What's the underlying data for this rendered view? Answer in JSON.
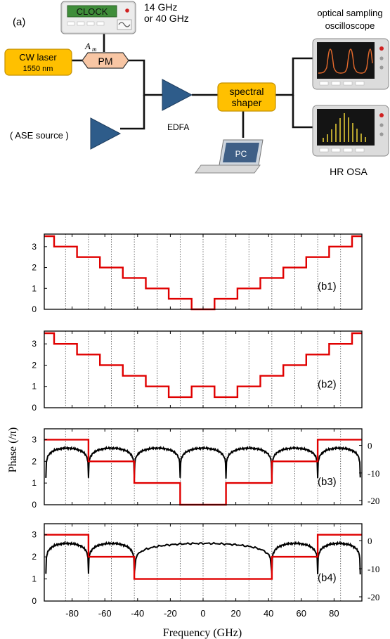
{
  "setup": {
    "panel_label": "(a)",
    "clock_label": "CLOCK",
    "clock_freq_line1": "14 GHz",
    "clock_freq_line2": "or 40 GHz",
    "laser_line1": "CW laser",
    "laser_line2": "1550 nm",
    "modulator": "PM",
    "modulation_amplitude": "A",
    "modulation_amplitude_sub": "m",
    "ase_source": "( ASE source )",
    "amplifier": "EDFA",
    "shaper_line1": "spectral",
    "shaper_line2": "shaper",
    "computer": "PC",
    "scope_line1": "optical sampling",
    "scope_line2": "oscilloscope",
    "osa": "HR OSA"
  },
  "chart_data": {
    "type": "line",
    "ylabel": "Phase (/π)",
    "xlabel": "Frequency (GHz)",
    "xlim": [
      -97,
      97
    ],
    "xticks": [
      -80,
      -60,
      -40,
      -20,
      0,
      20,
      40,
      60,
      80
    ],
    "x_tick_labels": [
      "-80",
      "-60",
      "-40",
      "-20",
      "0",
      "20",
      "40",
      "60",
      "80"
    ],
    "yticks": [
      0,
      1,
      2,
      3
    ],
    "y_tick_labels": [
      "0",
      "1",
      "2",
      "3"
    ],
    "right_yticks": [
      0,
      -10,
      -20
    ],
    "right_y_tick_labels": [
      "0",
      "-10",
      "-20"
    ],
    "gridlines_x": [
      -84,
      -70,
      -56,
      -42,
      -28,
      -14,
      0,
      14,
      28,
      42,
      56,
      70,
      84
    ],
    "panels": [
      {
        "label": "(b1)",
        "ylim": [
          0,
          3.6
        ],
        "phase_edges": [
          -97,
          -91,
          -84,
          -77,
          -70,
          -63,
          -56,
          -49,
          -42,
          -35,
          -28,
          -21,
          -14,
          -7,
          7,
          14,
          21,
          28,
          35,
          42,
          49,
          56,
          63,
          70,
          77,
          84,
          91,
          97
        ],
        "phase_values": [
          3.5,
          3.0,
          3.0,
          2.5,
          2.5,
          2.0,
          2.0,
          1.5,
          1.5,
          1.0,
          1.0,
          0.5,
          0.5,
          0.0,
          0.5,
          0.5,
          1.0,
          1.0,
          1.5,
          1.5,
          2.0,
          2.0,
          2.5,
          2.5,
          3.0,
          3.0,
          3.5
        ]
      },
      {
        "label": "(b2)",
        "ylim": [
          0,
          3.6
        ],
        "phase_edges": [
          -97,
          -91,
          -84,
          -77,
          -70,
          -63,
          -56,
          -49,
          -42,
          -35,
          -28,
          -21,
          -14,
          -7,
          7,
          14,
          21,
          28,
          35,
          42,
          49,
          56,
          63,
          70,
          77,
          84,
          91,
          97
        ],
        "phase_values": [
          3.5,
          3.0,
          3.0,
          2.5,
          2.5,
          2.0,
          2.0,
          1.5,
          1.5,
          1.0,
          1.0,
          0.5,
          0.5,
          1.0,
          0.5,
          0.5,
          1.0,
          1.0,
          1.5,
          1.5,
          2.0,
          2.0,
          2.5,
          2.5,
          3.0,
          3.0,
          3.5
        ]
      },
      {
        "label": "(b3)",
        "ylim": [
          0,
          3.5
        ],
        "right_ylim": [
          -21.5,
          6
        ],
        "phase_edges": [
          -97,
          -70,
          -42,
          -14,
          14,
          42,
          70,
          97
        ],
        "phase_values": [
          3.0,
          2.0,
          1.0,
          0.0,
          1.0,
          2.0,
          3.0
        ],
        "spectrum_lobes": [
          [
            -96,
            -70
          ],
          [
            -70,
            -42
          ],
          [
            -42,
            -14
          ],
          [
            -14,
            14
          ],
          [
            14,
            42
          ],
          [
            42,
            70
          ],
          [
            70,
            96
          ]
        ],
        "spectrum_peak_db": -1
      },
      {
        "label": "(b4)",
        "ylim": [
          0,
          3.5
        ],
        "right_ylim": [
          -21.5,
          6
        ],
        "phase_edges": [
          -97,
          -70,
          -42,
          42,
          70,
          97
        ],
        "phase_values": [
          3.0,
          2.0,
          1.0,
          2.0,
          3.0
        ],
        "spectrum_lobes": [
          [
            -96,
            -70
          ],
          [
            -70,
            -42
          ],
          [
            -42,
            42
          ],
          [
            42,
            70
          ],
          [
            70,
            96
          ]
        ],
        "spectrum_peak_db": -1
      }
    ]
  }
}
